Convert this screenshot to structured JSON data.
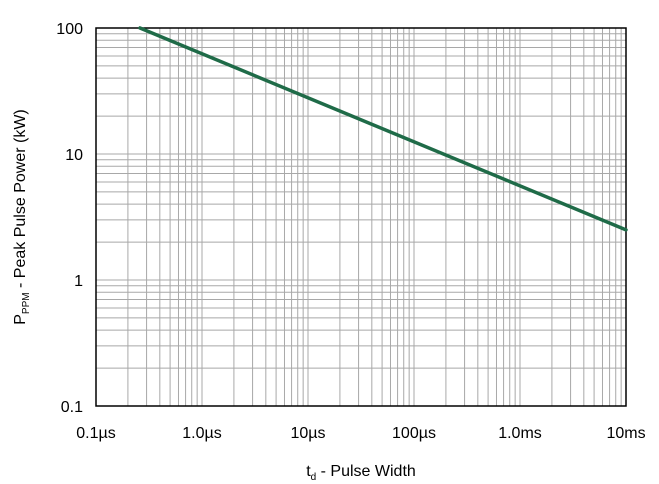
{
  "chart_data": {
    "type": "line",
    "title": "",
    "xscale": "log",
    "yscale": "log",
    "xlim": [
      1e-07,
      0.01
    ],
    "ylim": [
      0.1,
      100
    ],
    "x_tick_values": [
      1e-07,
      1e-06,
      1e-05,
      0.0001,
      0.001,
      0.01
    ],
    "x_tick_labels": [
      "0.1µs",
      "1.0µs",
      "10µs",
      "100µs",
      "1.0ms",
      "10ms"
    ],
    "y_tick_values": [
      0.1,
      1,
      10,
      100
    ],
    "y_tick_labels": [
      "0.1",
      "1",
      "10",
      "100"
    ],
    "xlabel": {
      "main": "t",
      "sub": "d",
      "rest": " - Pulse Width"
    },
    "ylabel": {
      "main": "P",
      "sub": "PPM",
      "rest": " - Peak Pulse Power (kW)"
    },
    "grid": true,
    "series": [
      {
        "color": "#1f6b48",
        "points": [
          {
            "x": 2.6e-07,
            "y": 100
          },
          {
            "x": 0.01,
            "y": 2.5
          }
        ]
      }
    ]
  }
}
